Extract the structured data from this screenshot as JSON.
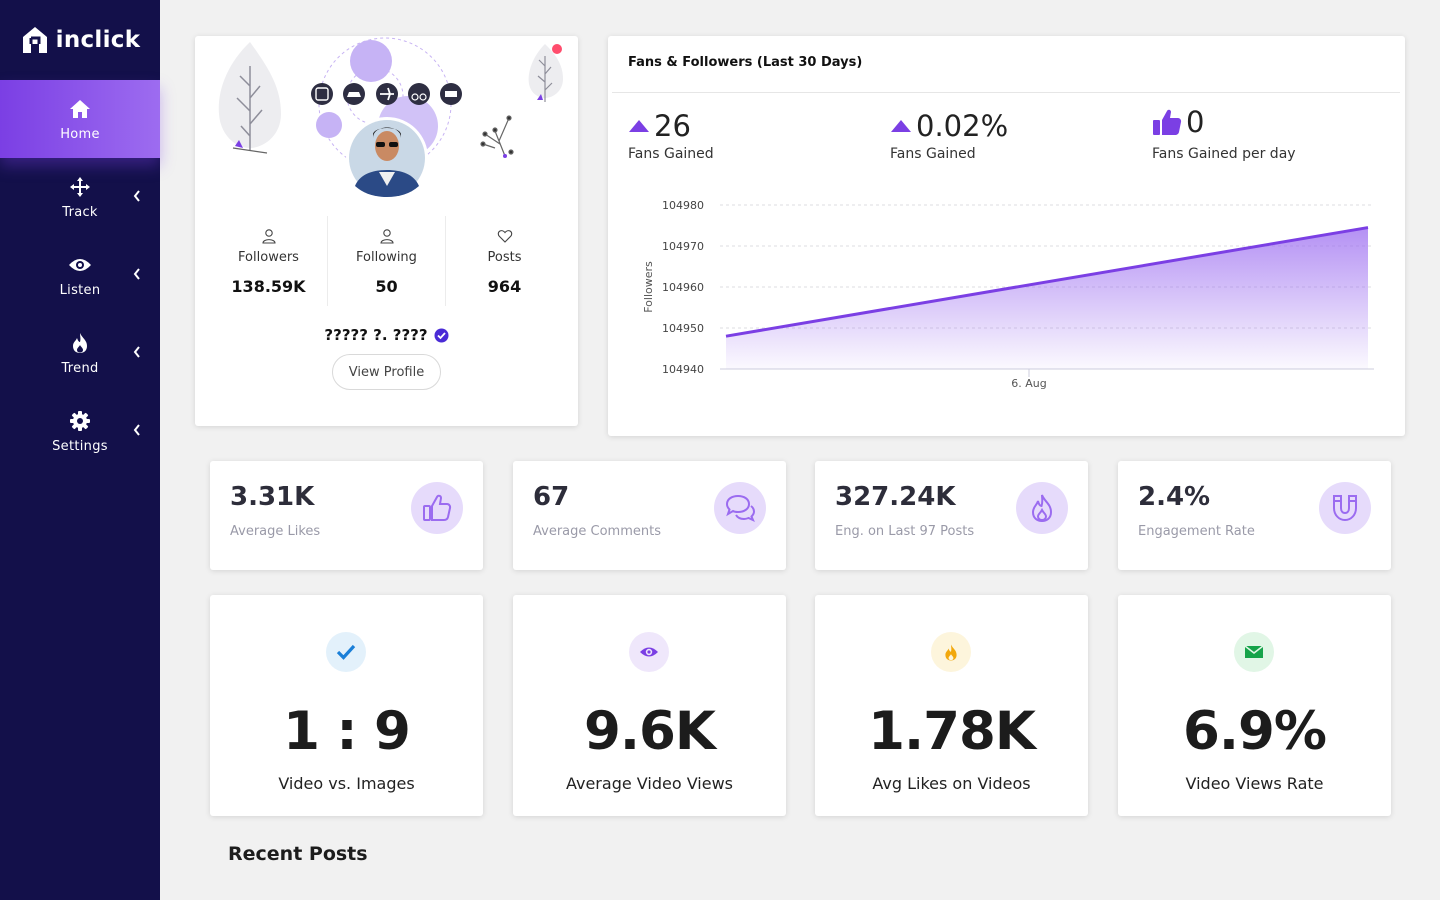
{
  "brand": {
    "name": "inclick"
  },
  "sidebar": {
    "items": [
      {
        "label": "Home",
        "icon": "home-icon",
        "active": true
      },
      {
        "label": "Track",
        "icon": "track-icon",
        "active": false
      },
      {
        "label": "Listen",
        "icon": "eye-icon",
        "active": false
      },
      {
        "label": "Trend",
        "icon": "flame-icon",
        "active": false
      },
      {
        "label": "Settings",
        "icon": "gear-icon",
        "active": false
      }
    ]
  },
  "profile": {
    "name": "????? ?. ????",
    "verified": true,
    "view_profile_label": "View Profile",
    "stats": [
      {
        "label": "Followers",
        "value": "138.59K",
        "icon": "user-icon"
      },
      {
        "label": "Following",
        "value": "50",
        "icon": "user-icon"
      },
      {
        "label": "Posts",
        "value": "964",
        "icon": "heart-icon"
      }
    ]
  },
  "fans": {
    "title": "Fans & Followers (Last 30 Days)",
    "metrics": [
      {
        "value": "26",
        "label": "Fans Gained",
        "icon": "triangle-up-icon"
      },
      {
        "value": "0.02%",
        "label": "Fans Gained",
        "icon": "triangle-up-icon"
      },
      {
        "value": "0",
        "label": "Fans Gained per day",
        "icon": "thumbs-up-icon"
      }
    ]
  },
  "chart_data": {
    "type": "area",
    "ylabel": "Followers",
    "xlabel": "",
    "y_ticks": [
      104940,
      104950,
      104960,
      104970,
      104980
    ],
    "ylim": [
      104940,
      104980
    ],
    "x_tick_label": "6. Aug",
    "series": [
      {
        "values": [
          104948,
          104974.5
        ]
      }
    ],
    "grid": true,
    "color": "#7b3fe4"
  },
  "small_cards": [
    {
      "value": "3.31K",
      "label": "Average Likes",
      "icon": "thumbs-up-icon"
    },
    {
      "value": "67",
      "label": "Average Comments",
      "icon": "comments-icon"
    },
    {
      "value": "327.24K",
      "label": "Eng. on Last 97 Posts",
      "icon": "flame-icon"
    },
    {
      "value": "2.4%",
      "label": "Engagement Rate",
      "icon": "magnet-icon"
    }
  ],
  "big_cards": [
    {
      "value": "1 : 9",
      "label": "Video vs. Images",
      "icon": "check-icon",
      "icon_bg": "#e3f1fb",
      "icon_color": "#1a7fd8"
    },
    {
      "value": "9.6K",
      "label": "Average Video Views",
      "icon": "eye-icon",
      "icon_bg": "#efe7fb",
      "icon_color": "#7b3fe4"
    },
    {
      "value": "1.78K",
      "label": "Avg Likes on Videos",
      "icon": "flame-icon",
      "icon_bg": "#fdf5dc",
      "icon_color": "#f2a80c"
    },
    {
      "value": "6.9%",
      "label": "Video Views Rate",
      "icon": "envelope-icon",
      "icon_bg": "#e1f6e6",
      "icon_color": "#16a34a"
    }
  ],
  "recent": {
    "title": "Recent Posts"
  },
  "colors": {
    "sidebar": "#13104a",
    "accent": "#7b3fe4",
    "accent_light": "#e6dbfb"
  }
}
